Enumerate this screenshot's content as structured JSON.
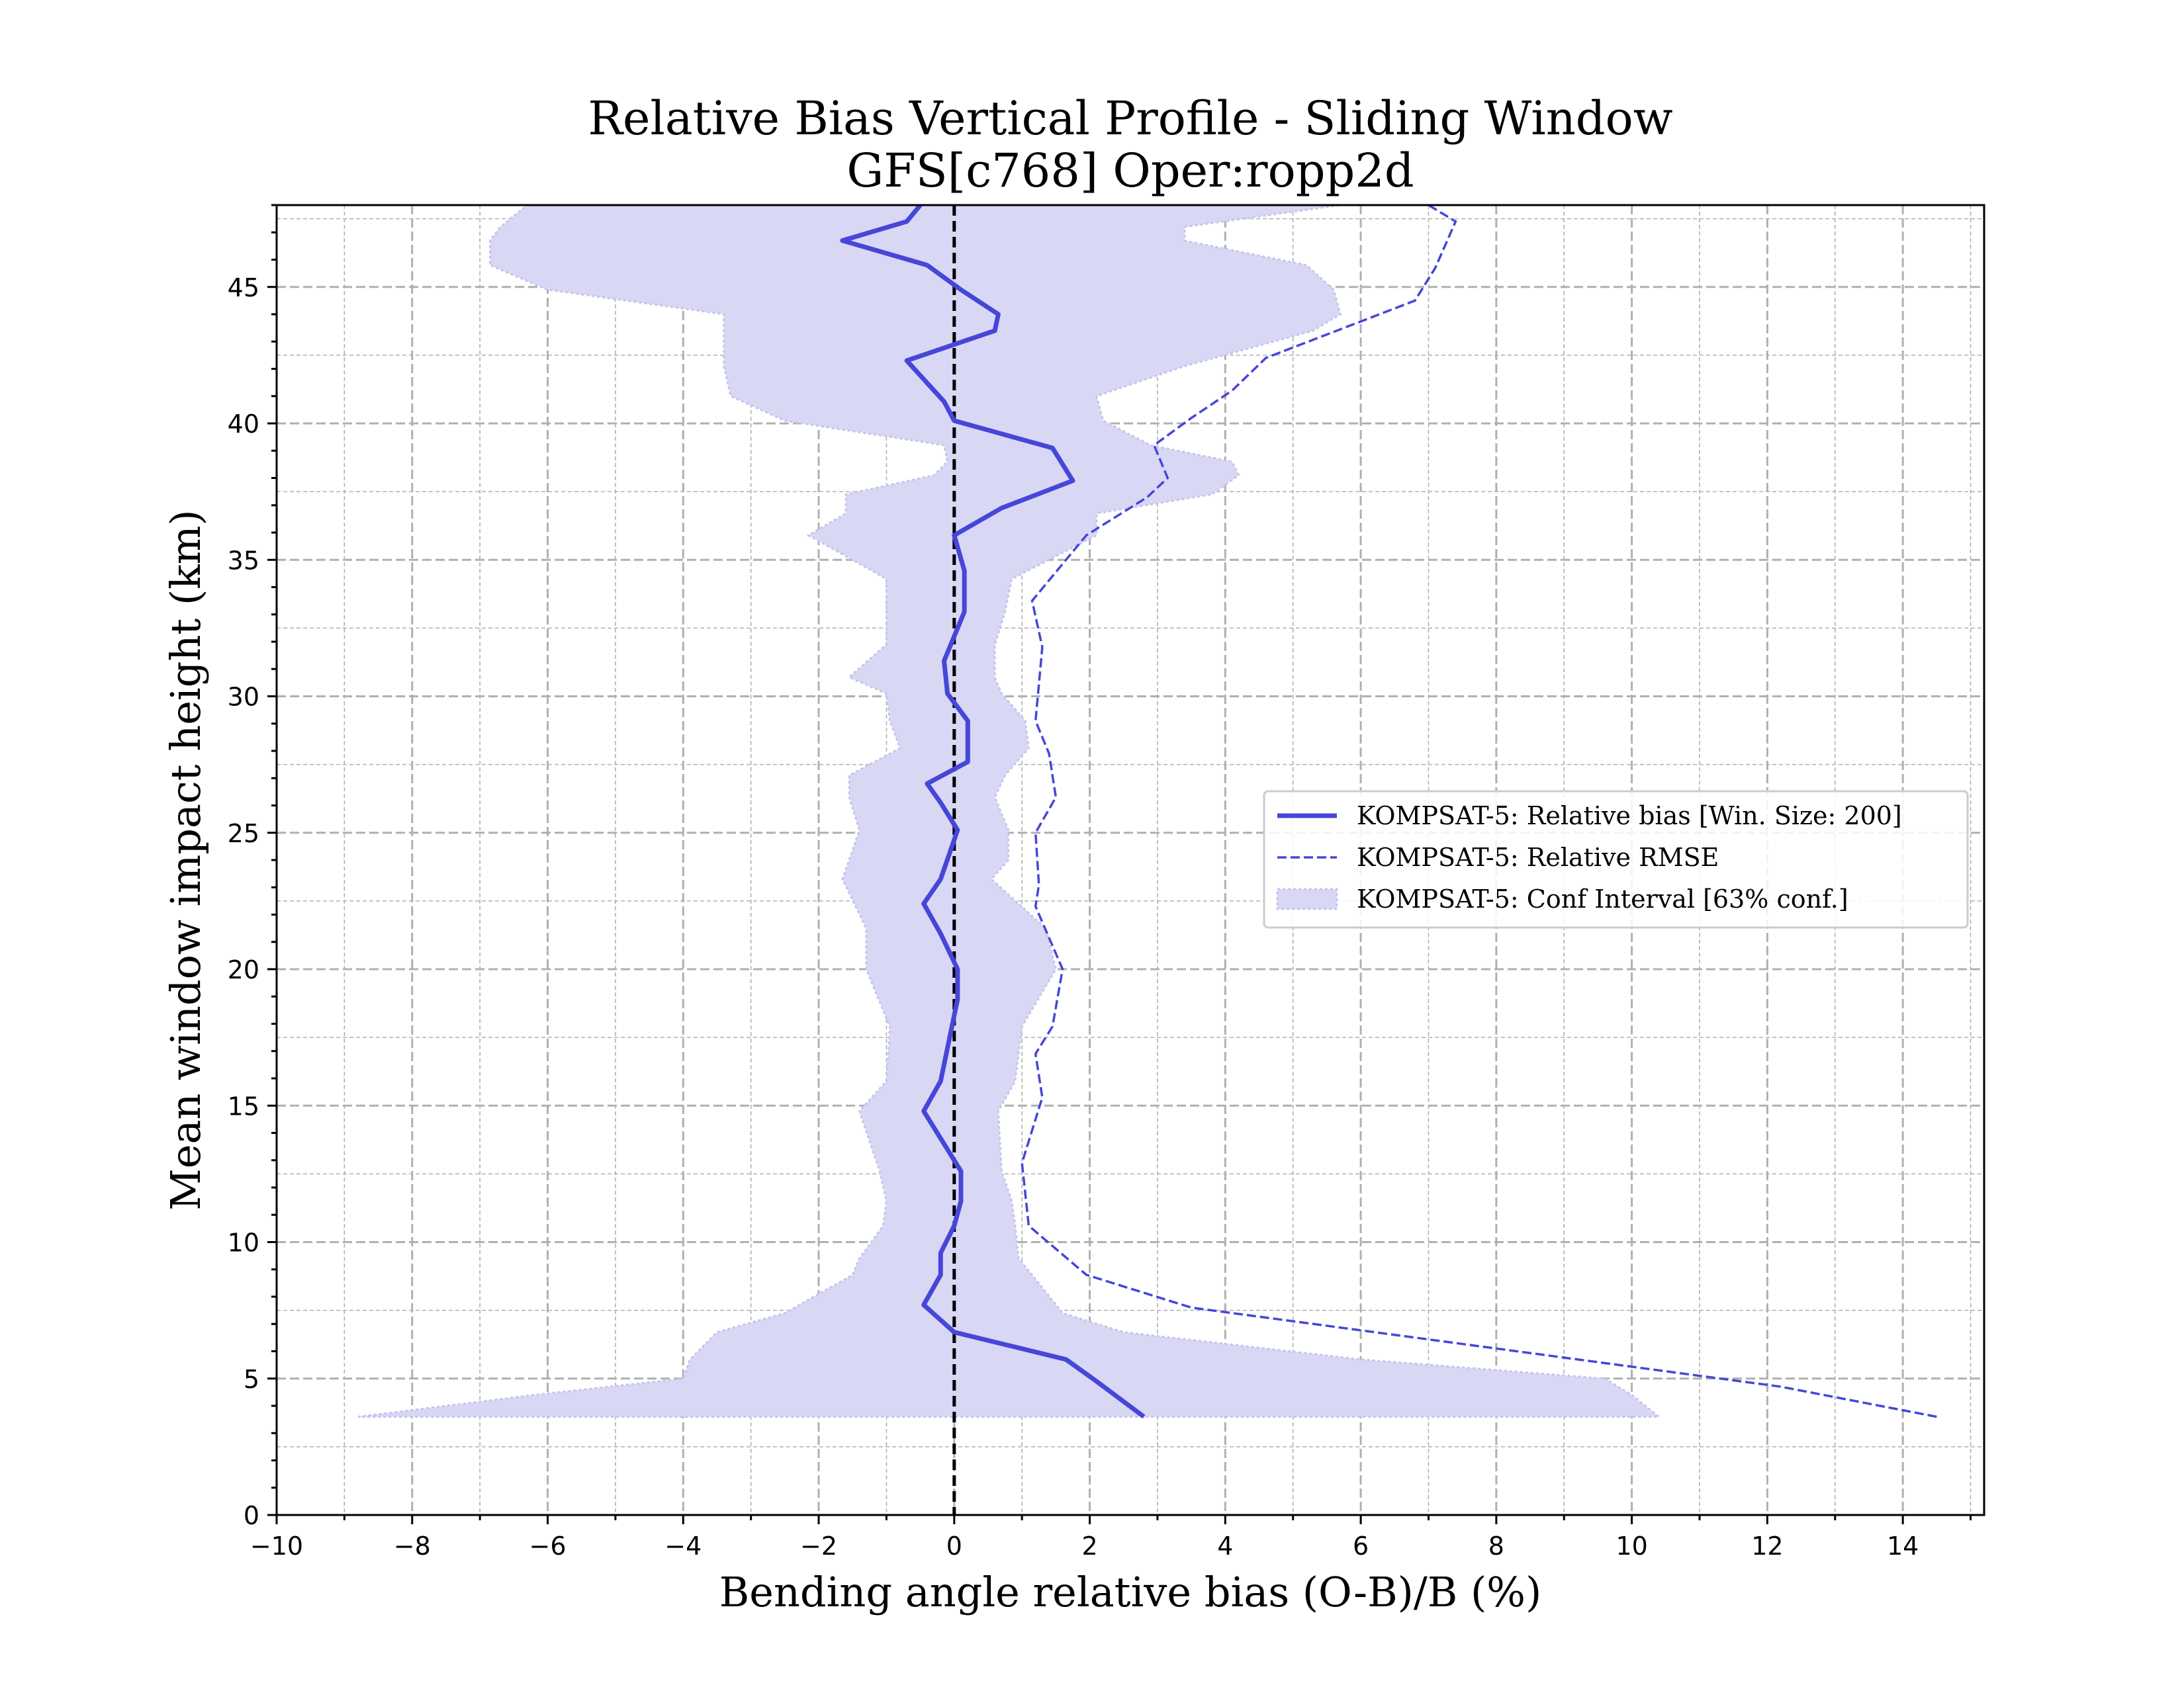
{
  "chart_data": {
    "type": "line",
    "title": "Relative Bias Vertical Profile - Sliding Window",
    "subtitle": "GFS[c768] Oper:ropp2d",
    "xlabel": "Bending angle relative bias (O-B)/B (%)",
    "ylabel": "Mean window impact height (km)",
    "xlim": [
      -10,
      15.2
    ],
    "ylim": [
      0,
      48
    ],
    "xticks": [
      -10,
      -8,
      -6,
      -4,
      -2,
      0,
      2,
      4,
      6,
      8,
      10,
      12,
      14
    ],
    "xtick_labels": [
      "−10",
      "−8",
      "−6",
      "−4",
      "−2",
      "0",
      "2",
      "4",
      "6",
      "8",
      "10",
      "12",
      "14"
    ],
    "yticks": [
      0,
      5,
      10,
      15,
      20,
      25,
      30,
      35,
      40,
      45
    ],
    "ytick_labels": [
      "0",
      "5",
      "10",
      "15",
      "20",
      "25",
      "30",
      "35",
      "40",
      "45"
    ],
    "grid": true,
    "zero_line": 0,
    "legend_position": "center-right",
    "colors": {
      "bias": "#4646d8",
      "rmse": "#4646d8",
      "ci_fill": "#d8d8f5",
      "ci_edge": "#c4c4ee",
      "grid": "#b0b0b0"
    },
    "series": [
      {
        "name": "KOMPSAT-5: Relative bias [Win. Size: 200]",
        "style": "solid",
        "y": [
          3.6,
          4.9,
          5.7,
          6.7,
          7.7,
          8.8,
          9.6,
          10.6,
          11.5,
          12.6,
          14.8,
          15.9,
          18.9,
          20.0,
          21.3,
          22.4,
          23.3,
          25.1,
          26.1,
          26.8,
          27.6,
          29.1,
          30.1,
          31.3,
          33.1,
          34.6,
          35.9,
          36.9,
          37.9,
          39.1,
          40.1,
          40.8,
          42.3,
          43.4,
          44.0,
          44.9,
          45.8,
          46.7,
          47.4,
          48.0
        ],
        "x": [
          2.8,
          2.1,
          1.65,
          0.0,
          -0.45,
          -0.2,
          -0.2,
          0.0,
          0.1,
          0.1,
          -0.45,
          -0.2,
          0.05,
          0.05,
          -0.2,
          -0.45,
          -0.2,
          0.05,
          -0.2,
          -0.4,
          0.2,
          0.2,
          -0.1,
          -0.15,
          0.15,
          0.15,
          0.0,
          0.7,
          1.75,
          1.45,
          0.0,
          -0.15,
          -0.7,
          0.6,
          0.65,
          0.1,
          -0.4,
          -1.65,
          -0.7,
          -0.5
        ]
      },
      {
        "name": "KOMPSAT-5: Relative RMSE",
        "style": "dashed",
        "y": [
          3.6,
          4.7,
          6.7,
          7.6,
          8.8,
          10.6,
          12.9,
          15.3,
          16.9,
          17.9,
          20.0,
          22.3,
          23.1,
          25.0,
          26.3,
          27.9,
          29.1,
          31.8,
          33.5,
          35.9,
          37.3,
          38.0,
          39.2,
          40.2,
          41.2,
          42.4,
          44.5,
          45.7,
          47.4,
          48.0
        ],
        "x": [
          14.5,
          12.2,
          6.2,
          3.5,
          1.95,
          1.1,
          1.0,
          1.3,
          1.2,
          1.45,
          1.6,
          1.2,
          1.25,
          1.2,
          1.5,
          1.4,
          1.2,
          1.3,
          1.15,
          1.95,
          2.85,
          3.15,
          2.95,
          3.5,
          4.1,
          4.6,
          6.8,
          7.1,
          7.4,
          7.0
        ]
      },
      {
        "name": "KOMPSAT-5: Conf Interval [63% conf.]",
        "style": "band",
        "y": [
          3.6,
          4.4,
          5.0,
          5.7,
          6.7,
          7.4,
          8.8,
          9.4,
          10.6,
          11.5,
          12.6,
          14.8,
          15.9,
          17.9,
          20.0,
          21.5,
          23.3,
          24.0,
          25.1,
          26.3,
          27.1,
          28.1,
          29.1,
          30.1,
          30.7,
          31.9,
          33.1,
          34.3,
          35.9,
          36.7,
          37.4,
          38.1,
          38.6,
          39.2,
          40.1,
          41.0,
          42.1,
          43.4,
          44.0,
          44.9,
          45.8,
          46.7,
          47.2,
          48.0
        ],
        "lower": [
          -8.8,
          -6.2,
          -4.0,
          -3.9,
          -3.5,
          -2.5,
          -1.5,
          -1.4,
          -1.05,
          -1.0,
          -1.1,
          -1.4,
          -1.0,
          -0.95,
          -1.3,
          -1.3,
          -1.65,
          -1.55,
          -1.4,
          -1.55,
          -1.55,
          -0.8,
          -0.95,
          -1.0,
          -1.55,
          -1.0,
          -1.0,
          -1.0,
          -2.15,
          -1.6,
          -1.6,
          -0.3,
          -0.1,
          -0.15,
          -2.5,
          -3.3,
          -3.4,
          -3.4,
          -3.4,
          -6.0,
          -6.85,
          -6.85,
          -6.7,
          -6.3
        ],
        "upper": [
          10.4,
          10.0,
          9.6,
          6.0,
          2.5,
          1.6,
          1.15,
          0.95,
          0.9,
          0.85,
          0.7,
          0.65,
          0.9,
          1.0,
          1.5,
          1.35,
          0.55,
          0.8,
          0.8,
          0.6,
          0.75,
          1.1,
          1.05,
          0.7,
          0.6,
          0.6,
          0.75,
          0.85,
          2.1,
          2.1,
          3.8,
          4.2,
          4.1,
          2.9,
          2.2,
          2.1,
          3.4,
          5.3,
          5.7,
          5.6,
          5.2,
          3.4,
          3.4,
          5.7
        ]
      }
    ]
  }
}
